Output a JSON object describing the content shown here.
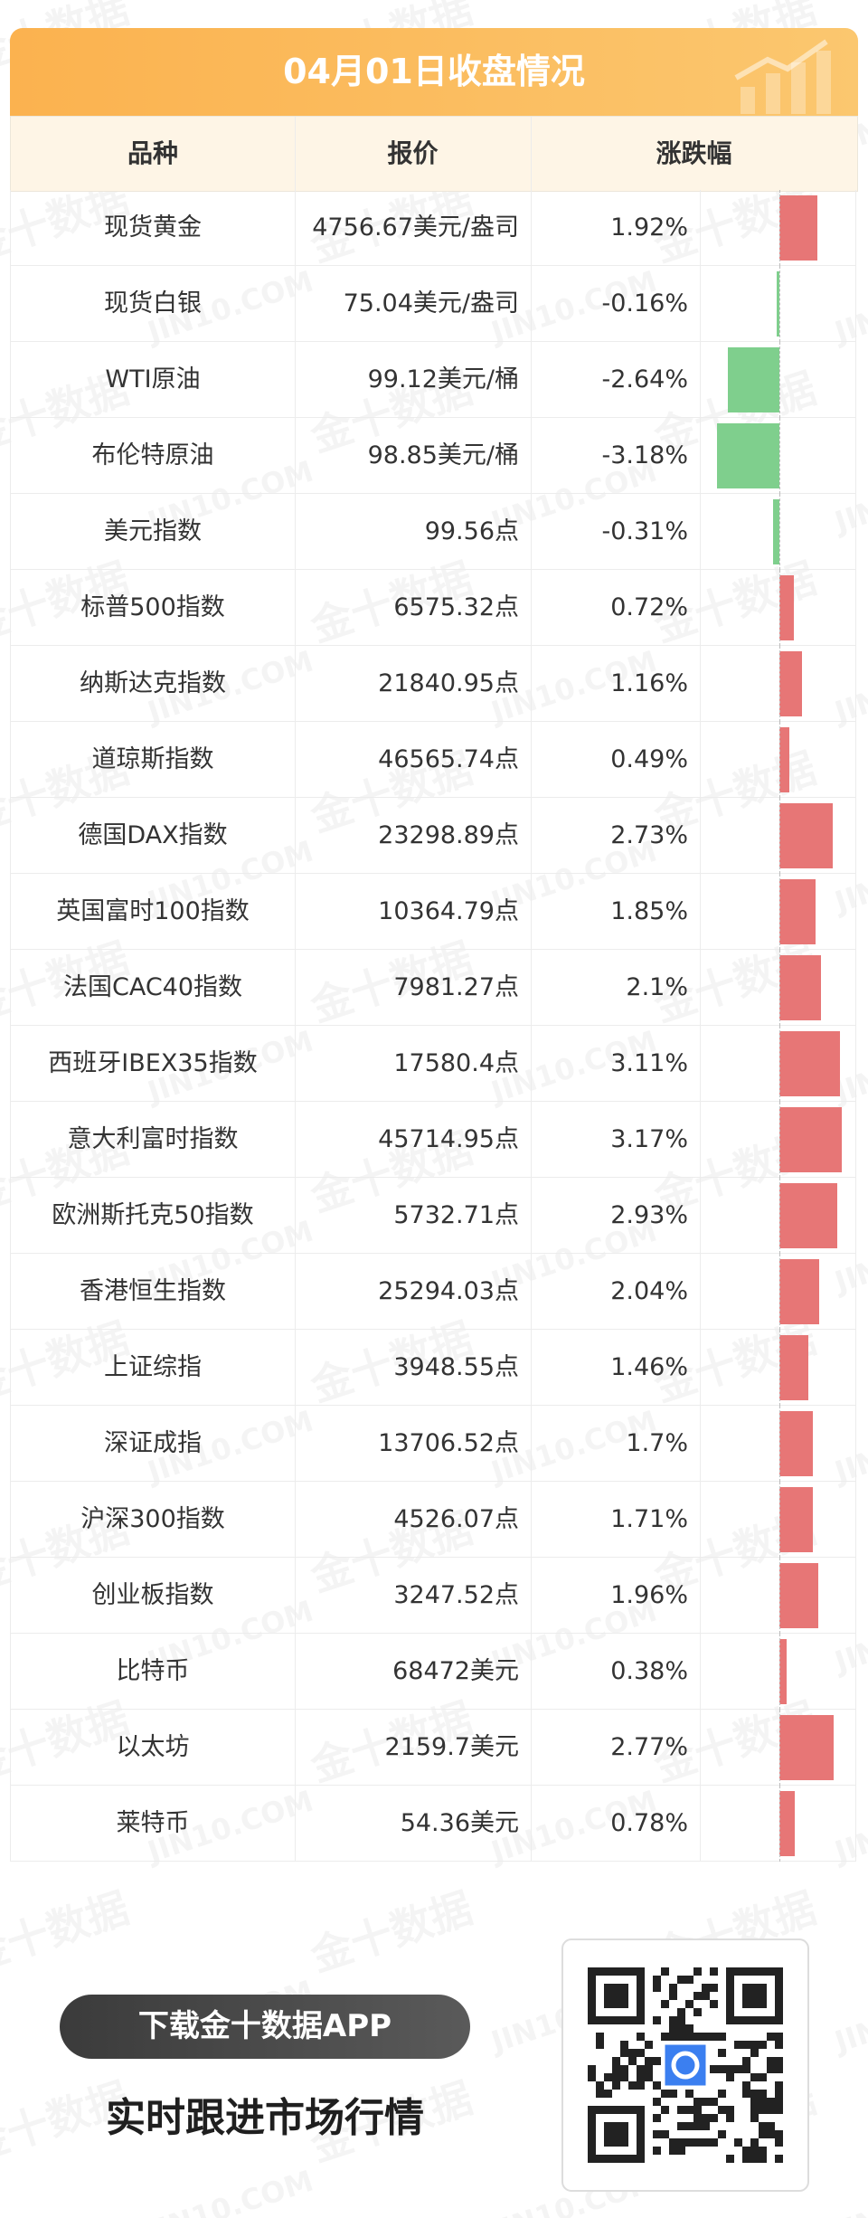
{
  "header": {
    "title": "04月01日收盘情况"
  },
  "watermark": {
    "cn": "金十数据",
    "en": "JIN10.COM"
  },
  "table": {
    "columns": [
      "品种",
      "报价",
      "涨跌幅"
    ],
    "rows": [
      {
        "name": "现货黄金",
        "price": "4756.67美元/盎司",
        "change": {
          "value": 1.92,
          "label": "1.92%"
        }
      },
      {
        "name": "现货白银",
        "price": "75.04美元/盎司",
        "change": {
          "value": -0.16,
          "label": "-0.16%"
        }
      },
      {
        "name": "WTI原油",
        "price": "99.12美元/桶",
        "change": {
          "value": -2.64,
          "label": "-2.64%"
        }
      },
      {
        "name": "布伦特原油",
        "price": "98.85美元/桶",
        "change": {
          "value": -3.18,
          "label": "-3.18%"
        }
      },
      {
        "name": "美元指数",
        "price": "99.56点",
        "change": {
          "value": -0.31,
          "label": "-0.31%"
        }
      },
      {
        "name": "标普500指数",
        "price": "6575.32点",
        "change": {
          "value": 0.72,
          "label": "0.72%"
        }
      },
      {
        "name": "纳斯达克指数",
        "price": "21840.95点",
        "change": {
          "value": 1.16,
          "label": "1.16%"
        }
      },
      {
        "name": "道琼斯指数",
        "price": "46565.74点",
        "change": {
          "value": 0.49,
          "label": "0.49%"
        }
      },
      {
        "name": "德国DAX指数",
        "price": "23298.89点",
        "change": {
          "value": 2.73,
          "label": "2.73%"
        }
      },
      {
        "name": "英国富时100指数",
        "price": "10364.79点",
        "change": {
          "value": 1.85,
          "label": "1.85%"
        }
      },
      {
        "name": "法国CAC40指数",
        "price": "7981.27点",
        "change": {
          "value": 2.1,
          "label": "2.1%"
        }
      },
      {
        "name": "西班牙IBEX35指数",
        "price": "17580.4点",
        "change": {
          "value": 3.11,
          "label": "3.11%"
        }
      },
      {
        "name": "意大利富时指数",
        "price": "45714.95点",
        "change": {
          "value": 3.17,
          "label": "3.17%"
        }
      },
      {
        "name": "欧洲斯托克50指数",
        "price": "5732.71点",
        "change": {
          "value": 2.93,
          "label": "2.93%"
        }
      },
      {
        "name": "香港恒生指数",
        "price": "25294.03点",
        "change": {
          "value": 2.04,
          "label": "2.04%"
        }
      },
      {
        "name": "上证综指",
        "price": "3948.55点",
        "change": {
          "value": 1.46,
          "label": "1.46%"
        }
      },
      {
        "name": "深证成指",
        "price": "13706.52点",
        "change": {
          "value": 1.7,
          "label": "1.7%"
        }
      },
      {
        "name": "沪深300指数",
        "price": "4526.07点",
        "change": {
          "value": 1.71,
          "label": "1.71%"
        }
      },
      {
        "name": "创业板指数",
        "price": "3247.52点",
        "change": {
          "value": 1.96,
          "label": "1.96%"
        }
      },
      {
        "name": "比特币",
        "price": "68472美元",
        "change": {
          "value": 0.38,
          "label": "0.38%"
        }
      },
      {
        "name": "以太坊",
        "price": "2159.7美元",
        "change": {
          "value": 2.77,
          "label": "2.77%"
        }
      },
      {
        "name": "莱特币",
        "price": "54.36美元",
        "change": {
          "value": 0.78,
          "label": "0.78%"
        }
      }
    ]
  },
  "footer": {
    "button": "下载金十数据APP",
    "slogan": "实时跟进市场行情"
  }
}
